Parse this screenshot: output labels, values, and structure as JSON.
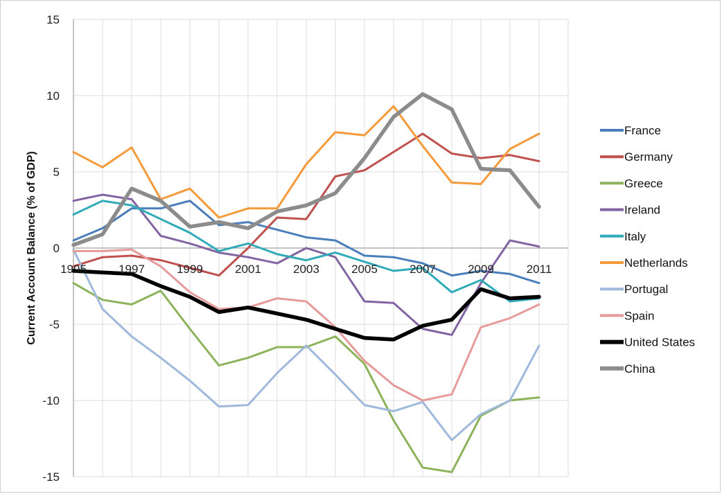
{
  "chart_data": {
    "type": "line",
    "title": "",
    "xlabel": "",
    "ylabel": "Current Account Balance (% of GDP)",
    "x": [
      1995,
      1996,
      1997,
      1998,
      1999,
      2000,
      2001,
      2002,
      2003,
      2004,
      2005,
      2006,
      2007,
      2008,
      2009,
      2010,
      2011
    ],
    "xtick_labels": [
      "1995",
      "1997",
      "1999",
      "2001",
      "2003",
      "2005",
      "2007",
      "2009",
      "2011"
    ],
    "yticks": [
      15,
      10,
      5,
      0,
      -5,
      -10,
      -15
    ],
    "ylim": [
      -15,
      15
    ],
    "grid": true,
    "legend_position": "right",
    "series": [
      {
        "name": "France",
        "color": "#4a7ebb",
        "width": 3,
        "values": [
          0.5,
          1.3,
          2.6,
          2.6,
          3.1,
          1.5,
          1.7,
          1.2,
          0.7,
          0.5,
          -0.5,
          -0.6,
          -1.0,
          -1.8,
          -1.5,
          -1.7,
          -2.3
        ]
      },
      {
        "name": "Germany",
        "color": "#c0504d",
        "width": 3,
        "values": [
          -1.2,
          -0.6,
          -0.5,
          -0.8,
          -1.3,
          -1.8,
          0.0,
          2.0,
          1.9,
          4.7,
          5.1,
          6.3,
          7.5,
          6.2,
          5.9,
          6.1,
          5.7
        ]
      },
      {
        "name": "Greece",
        "color": "#8cb35a",
        "width": 3,
        "values": [
          -2.3,
          -3.4,
          -3.7,
          -2.8,
          -5.3,
          -7.7,
          -7.2,
          -6.5,
          -6.5,
          -5.8,
          -7.6,
          -11.3,
          -14.4,
          -14.7,
          -11.0,
          -10.0,
          -9.8
        ]
      },
      {
        "name": "Ireland",
        "color": "#8264a2",
        "width": 3,
        "values": [
          3.1,
          3.5,
          3.2,
          0.8,
          0.3,
          -0.3,
          -0.6,
          -1.0,
          0.0,
          -0.6,
          -3.5,
          -3.6,
          -5.3,
          -5.7,
          -2.3,
          0.5,
          0.1
        ]
      },
      {
        "name": "Italy",
        "color": "#2eaab8",
        "width": 3,
        "values": [
          2.2,
          3.1,
          2.8,
          1.9,
          1.0,
          -0.2,
          0.3,
          -0.4,
          -0.8,
          -0.3,
          -0.9,
          -1.5,
          -1.3,
          -2.9,
          -2.1,
          -3.5,
          -3.3
        ]
      },
      {
        "name": "Netherlands",
        "color": "#f59a3a",
        "width": 3,
        "values": [
          6.3,
          5.3,
          6.6,
          3.2,
          3.9,
          2.0,
          2.6,
          2.6,
          5.5,
          7.6,
          7.4,
          9.3,
          6.7,
          4.3,
          4.2,
          6.5,
          7.5
        ]
      },
      {
        "name": "Portugal",
        "color": "#9fb9dc",
        "width": 3,
        "values": [
          -0.1,
          -4.0,
          -5.8,
          -7.2,
          -8.7,
          -10.4,
          -10.3,
          -8.2,
          -6.4,
          -8.3,
          -10.3,
          -10.7,
          -10.1,
          -12.6,
          -10.9,
          -10.0,
          -6.4
        ]
      },
      {
        "name": "Spain",
        "color": "#e69b9a",
        "width": 3,
        "values": [
          -0.2,
          -0.2,
          -0.1,
          -1.2,
          -2.9,
          -4.0,
          -3.9,
          -3.3,
          -3.5,
          -5.2,
          -7.4,
          -9.0,
          -10.0,
          -9.6,
          -5.2,
          -4.6,
          -3.7
        ]
      },
      {
        "name": "United States",
        "color": "#000000",
        "width": 5.5,
        "values": [
          -1.5,
          -1.6,
          -1.7,
          -2.5,
          -3.2,
          -4.2,
          -3.9,
          -4.3,
          -4.7,
          -5.3,
          -5.9,
          -6.0,
          -5.1,
          -4.7,
          -2.7,
          -3.3,
          -3.2
        ]
      },
      {
        "name": "China",
        "color": "#8c8c8c",
        "width": 5.5,
        "values": [
          0.2,
          0.9,
          3.9,
          3.1,
          1.4,
          1.7,
          1.3,
          2.4,
          2.8,
          3.6,
          5.9,
          8.6,
          10.1,
          9.1,
          5.2,
          5.1,
          2.7
        ]
      }
    ]
  }
}
